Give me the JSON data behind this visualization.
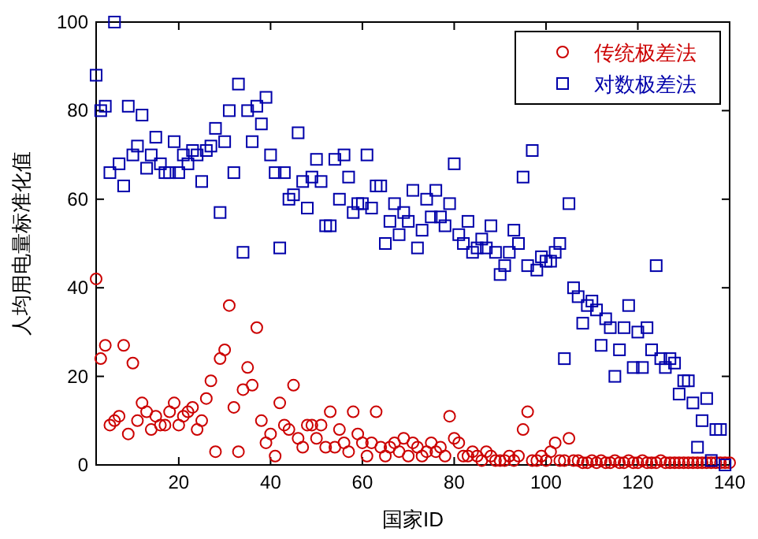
{
  "chart_data": {
    "type": "scatter",
    "xlabel": "国家ID",
    "ylabel": "人均用电量标准化值",
    "xlim": [
      2,
      140
    ],
    "ylim": [
      0,
      100
    ],
    "xticks": [
      20,
      40,
      60,
      80,
      100,
      120,
      140
    ],
    "yticks": [
      0,
      20,
      40,
      60,
      80,
      100
    ],
    "grid": false,
    "legend": "top right",
    "series": [
      {
        "name": "传统极差法",
        "color": "#cc0000",
        "marker": "circle",
        "x": [
          2,
          3,
          4,
          5,
          6,
          7,
          8,
          9,
          10,
          11,
          12,
          13,
          14,
          15,
          16,
          17,
          18,
          19,
          20,
          21,
          22,
          23,
          24,
          25,
          26,
          27,
          28,
          29,
          30,
          31,
          32,
          33,
          34,
          35,
          36,
          37,
          38,
          39,
          40,
          41,
          42,
          43,
          44,
          45,
          46,
          47,
          48,
          49,
          50,
          51,
          52,
          53,
          54,
          55,
          56,
          57,
          58,
          59,
          60,
          61,
          62,
          63,
          64,
          65,
          66,
          67,
          68,
          69,
          70,
          71,
          72,
          73,
          74,
          75,
          76,
          77,
          78,
          79,
          80,
          81,
          82,
          83,
          84,
          85,
          86,
          87,
          88,
          89,
          90,
          91,
          92,
          93,
          94,
          95,
          96,
          97,
          98,
          99,
          100,
          101,
          102,
          103,
          104,
          105,
          106,
          107,
          108,
          109,
          110,
          111,
          112,
          113,
          114,
          115,
          116,
          117,
          118,
          119,
          120,
          121,
          122,
          123,
          124,
          125,
          126,
          127,
          128,
          129,
          130,
          131,
          132,
          133,
          134,
          135,
          136,
          137,
          138,
          139,
          140
        ],
        "values": [
          42,
          24,
          27,
          9,
          10,
          11,
          27,
          7,
          23,
          10,
          14,
          12,
          8,
          11,
          9,
          9,
          12,
          14,
          9,
          11,
          12,
          13,
          8,
          10,
          15,
          19,
          3,
          24,
          26,
          36,
          13,
          3,
          17,
          22,
          18,
          31,
          10,
          5,
          7,
          2,
          14,
          9,
          8,
          18,
          6,
          4,
          9,
          9,
          6,
          9,
          4,
          12,
          4,
          8,
          5,
          3,
          12,
          7,
          5,
          2,
          5,
          12,
          4,
          2,
          4,
          5,
          3,
          6,
          2,
          5,
          4,
          2,
          3,
          5,
          3,
          4,
          2,
          11,
          6,
          5,
          2,
          2,
          3,
          2,
          1,
          3,
          2,
          1,
          1,
          1,
          2,
          1,
          2,
          8,
          12,
          1,
          1,
          2,
          1,
          3,
          5,
          1,
          1,
          6,
          1,
          1,
          0.5,
          0.5,
          1,
          0.5,
          1,
          0.5,
          0.5,
          1,
          0.5,
          0.5,
          1,
          0.5,
          0.5,
          1,
          0.5,
          0.5,
          0.5,
          1,
          0.5,
          0.5,
          0.5,
          0.5,
          0.5,
          0.5,
          0.5,
          0.5,
          0.5,
          0.5,
          0.5,
          0.5,
          0.5,
          0.5,
          0.5
        ]
      },
      {
        "name": "对数极差法",
        "color": "#0000aa",
        "marker": "square",
        "x": [
          2,
          3,
          4,
          5,
          6,
          7,
          8,
          9,
          10,
          11,
          12,
          13,
          14,
          15,
          16,
          17,
          18,
          19,
          20,
          21,
          22,
          23,
          24,
          25,
          26,
          27,
          28,
          29,
          30,
          31,
          32,
          33,
          34,
          35,
          36,
          37,
          38,
          39,
          40,
          41,
          42,
          43,
          44,
          45,
          46,
          47,
          48,
          49,
          50,
          51,
          52,
          53,
          54,
          55,
          56,
          57,
          58,
          59,
          60,
          61,
          62,
          63,
          64,
          65,
          66,
          67,
          68,
          69,
          70,
          71,
          72,
          73,
          74,
          75,
          76,
          77,
          78,
          79,
          80,
          81,
          82,
          83,
          84,
          85,
          86,
          87,
          88,
          89,
          90,
          91,
          92,
          93,
          94,
          95,
          96,
          97,
          98,
          99,
          100,
          101,
          102,
          103,
          104,
          105,
          106,
          107,
          108,
          109,
          110,
          111,
          112,
          113,
          114,
          115,
          116,
          117,
          118,
          119,
          120,
          121,
          122,
          123,
          124,
          125,
          126,
          127,
          128,
          129,
          130,
          131,
          132,
          133,
          134,
          135,
          136,
          137,
          138,
          139
        ],
        "values": [
          88,
          80,
          81,
          66,
          100,
          68,
          63,
          81,
          70,
          72,
          79,
          67,
          70,
          74,
          68,
          66,
          66,
          73,
          66,
          70,
          68,
          71,
          70,
          64,
          71,
          72,
          76,
          57,
          73,
          80,
          66,
          86,
          48,
          80,
          73,
          81,
          77,
          83,
          70,
          66,
          49,
          66,
          60,
          61,
          75,
          64,
          58,
          65,
          69,
          64,
          54,
          54,
          69,
          60,
          70,
          65,
          57,
          59,
          59,
          70,
          58,
          63,
          63,
          50,
          55,
          59,
          52,
          57,
          55,
          62,
          49,
          53,
          60,
          56,
          62,
          56,
          54,
          59,
          68,
          52,
          50,
          55,
          48,
          49,
          51,
          49,
          54,
          48,
          43,
          45,
          48,
          53,
          50,
          65,
          45,
          71,
          44,
          47,
          46,
          46,
          48,
          50,
          24,
          59,
          40,
          38,
          32,
          36,
          37,
          35,
          27,
          33,
          31,
          20,
          26,
          31,
          36,
          22,
          30,
          22,
          31,
          26,
          45,
          24,
          22,
          24,
          23,
          16,
          19,
          19,
          14,
          4,
          10,
          15,
          1,
          8,
          8,
          0
        ]
      }
    ]
  }
}
